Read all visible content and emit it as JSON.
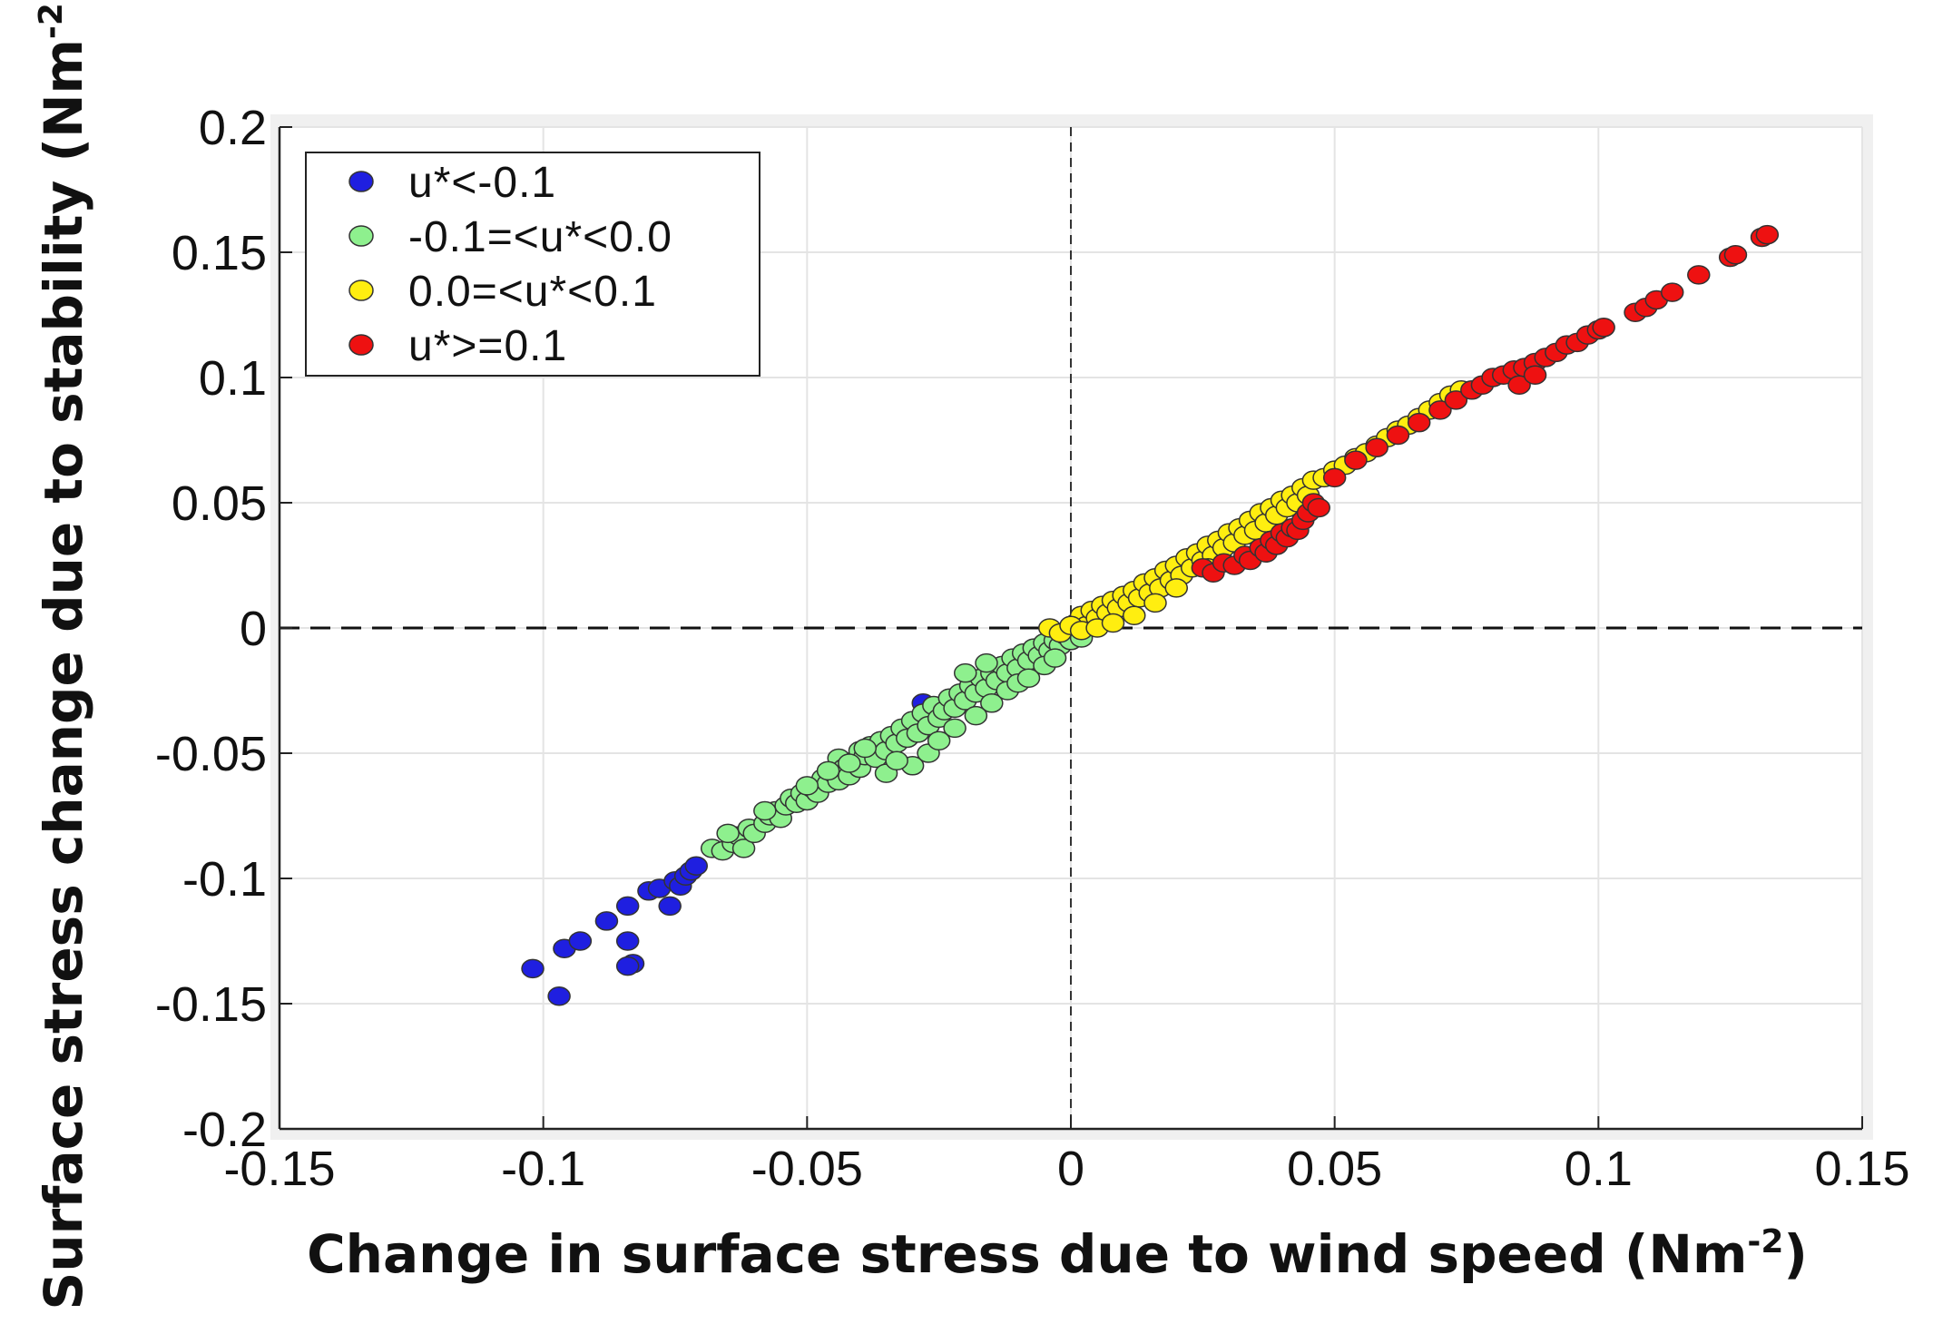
{
  "chart_data": {
    "type": "scatter",
    "title": "",
    "xlabel": "Change in surface stress due to wind speed (Nm",
    "xlabel_sup": "-2",
    "xlabel_end": ")",
    "ylabel": "Surface stress change due to stability (Nm",
    "ylabel_sup": "-2",
    "ylabel_end": ")",
    "xlim": [
      -0.15,
      0.15
    ],
    "ylim": [
      -0.2,
      0.2
    ],
    "x_ticks": [
      -0.15,
      -0.1,
      -0.05,
      0,
      0.05,
      0.1,
      0.15
    ],
    "x_tick_labels": [
      "-0.15",
      "-0.1",
      "-0.05",
      "0",
      "0.05",
      "0.1",
      "0.15"
    ],
    "y_ticks": [
      -0.2,
      -0.15,
      -0.1,
      -0.05,
      0,
      0.05,
      0.1,
      0.15,
      0.2
    ],
    "y_tick_labels": [
      "-0.2",
      "-0.15",
      "-0.1",
      "-0.05",
      "0",
      "0.05",
      "0.1",
      "0.15",
      "0.2"
    ],
    "grid": true,
    "zero_lines": "dashed",
    "legend_position": "top-left",
    "series": [
      {
        "name": "u*<-0.1",
        "color": "#1f1fe0",
        "points": [
          [
            -0.102,
            -0.136
          ],
          [
            -0.097,
            -0.147
          ],
          [
            -0.096,
            -0.128
          ],
          [
            -0.093,
            -0.125
          ],
          [
            -0.088,
            -0.117
          ],
          [
            -0.084,
            -0.111
          ],
          [
            -0.084,
            -0.125
          ],
          [
            -0.083,
            -0.134
          ],
          [
            -0.084,
            -0.135
          ],
          [
            -0.08,
            -0.105
          ],
          [
            -0.078,
            -0.104
          ],
          [
            -0.076,
            -0.111
          ],
          [
            -0.075,
            -0.101
          ],
          [
            -0.074,
            -0.103
          ],
          [
            -0.073,
            -0.099
          ],
          [
            -0.072,
            -0.097
          ],
          [
            -0.071,
            -0.095
          ],
          [
            -0.028,
            -0.03
          ]
        ]
      },
      {
        "name": "-0.1=<u*<0.0",
        "color": "#8ef08e",
        "points": [
          [
            -0.068,
            -0.088
          ],
          [
            -0.066,
            -0.089
          ],
          [
            -0.064,
            -0.086
          ],
          [
            -0.063,
            -0.083
          ],
          [
            -0.062,
            -0.088
          ],
          [
            -0.061,
            -0.08
          ],
          [
            -0.06,
            -0.082
          ],
          [
            -0.058,
            -0.078
          ],
          [
            -0.057,
            -0.075
          ],
          [
            -0.056,
            -0.073
          ],
          [
            -0.055,
            -0.076
          ],
          [
            -0.054,
            -0.071
          ],
          [
            -0.053,
            -0.068
          ],
          [
            -0.052,
            -0.07
          ],
          [
            -0.051,
            -0.066
          ],
          [
            -0.05,
            -0.069
          ],
          [
            -0.049,
            -0.064
          ],
          [
            -0.048,
            -0.066
          ],
          [
            -0.047,
            -0.06
          ],
          [
            -0.046,
            -0.062
          ],
          [
            -0.045,
            -0.058
          ],
          [
            -0.044,
            -0.052
          ],
          [
            -0.044,
            -0.061
          ],
          [
            -0.043,
            -0.056
          ],
          [
            -0.042,
            -0.059
          ],
          [
            -0.041,
            -0.053
          ],
          [
            -0.04,
            -0.049
          ],
          [
            -0.04,
            -0.056
          ],
          [
            -0.039,
            -0.051
          ],
          [
            -0.038,
            -0.047
          ],
          [
            -0.037,
            -0.052
          ],
          [
            -0.036,
            -0.045
          ],
          [
            -0.035,
            -0.049
          ],
          [
            -0.034,
            -0.043
          ],
          [
            -0.033,
            -0.046
          ],
          [
            -0.032,
            -0.04
          ],
          [
            -0.031,
            -0.044
          ],
          [
            -0.03,
            -0.037
          ],
          [
            -0.03,
            -0.055
          ],
          [
            -0.029,
            -0.042
          ],
          [
            -0.028,
            -0.034
          ],
          [
            -0.027,
            -0.039
          ],
          [
            -0.026,
            -0.031
          ],
          [
            -0.025,
            -0.036
          ],
          [
            -0.024,
            -0.033
          ],
          [
            -0.023,
            -0.028
          ],
          [
            -0.022,
            -0.032
          ],
          [
            -0.021,
            -0.026
          ],
          [
            -0.02,
            -0.029
          ],
          [
            -0.019,
            -0.023
          ],
          [
            -0.018,
            -0.026
          ],
          [
            -0.017,
            -0.02
          ],
          [
            -0.016,
            -0.024
          ],
          [
            -0.015,
            -0.018
          ],
          [
            -0.014,
            -0.021
          ],
          [
            -0.013,
            -0.015
          ],
          [
            -0.012,
            -0.018
          ],
          [
            -0.011,
            -0.012
          ],
          [
            -0.01,
            -0.016
          ],
          [
            -0.009,
            -0.01
          ],
          [
            -0.008,
            -0.013
          ],
          [
            -0.007,
            -0.008
          ],
          [
            -0.006,
            -0.011
          ],
          [
            -0.005,
            -0.006
          ],
          [
            -0.004,
            -0.009
          ],
          [
            -0.003,
            -0.005
          ],
          [
            -0.002,
            -0.007
          ],
          [
            -0.001,
            -0.003
          ],
          [
            0.0,
            -0.005
          ],
          [
            0.002,
            -0.004
          ],
          [
            -0.042,
            -0.054
          ],
          [
            -0.039,
            -0.048
          ],
          [
            -0.027,
            -0.05
          ],
          [
            -0.025,
            -0.045
          ],
          [
            -0.022,
            -0.04
          ],
          [
            -0.018,
            -0.035
          ],
          [
            -0.015,
            -0.03
          ],
          [
            -0.012,
            -0.025
          ],
          [
            -0.01,
            -0.022
          ],
          [
            -0.035,
            -0.058
          ],
          [
            -0.033,
            -0.053
          ],
          [
            -0.05,
            -0.063
          ],
          [
            -0.046,
            -0.057
          ],
          [
            -0.058,
            -0.073
          ],
          [
            -0.065,
            -0.082
          ],
          [
            -0.008,
            -0.02
          ],
          [
            -0.005,
            -0.015
          ],
          [
            -0.003,
            -0.012
          ],
          [
            -0.02,
            -0.018
          ],
          [
            -0.016,
            -0.014
          ]
        ]
      },
      {
        "name": "0.0=<u*<0.1",
        "color": "#ffee10",
        "points": [
          [
            0.001,
            0.002
          ],
          [
            0.002,
            0.005
          ],
          [
            0.003,
            0.001
          ],
          [
            0.004,
            0.007
          ],
          [
            0.005,
            0.004
          ],
          [
            0.006,
            0.009
          ],
          [
            0.007,
            0.006
          ],
          [
            0.008,
            0.011
          ],
          [
            0.009,
            0.008
          ],
          [
            0.01,
            0.013
          ],
          [
            0.011,
            0.01
          ],
          [
            0.012,
            0.015
          ],
          [
            0.013,
            0.012
          ],
          [
            0.014,
            0.018
          ],
          [
            0.015,
            0.014
          ],
          [
            0.016,
            0.02
          ],
          [
            0.017,
            0.016
          ],
          [
            0.018,
            0.023
          ],
          [
            0.019,
            0.019
          ],
          [
            0.02,
            0.025
          ],
          [
            0.021,
            0.021
          ],
          [
            0.022,
            0.028
          ],
          [
            0.023,
            0.024
          ],
          [
            0.024,
            0.03
          ],
          [
            0.025,
            0.027
          ],
          [
            0.026,
            0.033
          ],
          [
            0.027,
            0.029
          ],
          [
            0.028,
            0.035
          ],
          [
            0.029,
            0.032
          ],
          [
            0.03,
            0.038
          ],
          [
            0.031,
            0.034
          ],
          [
            0.032,
            0.04
          ],
          [
            0.033,
            0.037
          ],
          [
            0.034,
            0.043
          ],
          [
            0.035,
            0.039
          ],
          [
            0.036,
            0.046
          ],
          [
            0.037,
            0.042
          ],
          [
            0.038,
            0.048
          ],
          [
            0.039,
            0.045
          ],
          [
            0.04,
            0.051
          ],
          [
            0.041,
            0.048
          ],
          [
            0.042,
            0.053
          ],
          [
            0.043,
            0.05
          ],
          [
            0.044,
            0.056
          ],
          [
            0.045,
            0.053
          ],
          [
            0.046,
            0.059
          ],
          [
            0.048,
            0.06
          ],
          [
            0.05,
            0.063
          ],
          [
            0.052,
            0.065
          ],
          [
            0.054,
            0.068
          ],
          [
            0.056,
            0.07
          ],
          [
            0.058,
            0.073
          ],
          [
            0.06,
            0.076
          ],
          [
            0.062,
            0.079
          ],
          [
            0.064,
            0.081
          ],
          [
            0.066,
            0.084
          ],
          [
            0.068,
            0.087
          ],
          [
            0.07,
            0.09
          ],
          [
            0.072,
            0.093
          ],
          [
            0.074,
            0.095
          ],
          [
            -0.004,
            0.0
          ],
          [
            -0.002,
            -0.002
          ],
          [
            0.0,
            0.001
          ],
          [
            0.002,
            -0.001
          ],
          [
            0.005,
            0.0
          ],
          [
            0.008,
            0.002
          ],
          [
            0.012,
            0.005
          ],
          [
            0.016,
            0.01
          ],
          [
            0.02,
            0.016
          ],
          [
            0.026,
            0.024
          ]
        ]
      },
      {
        "name": "u*>=0.1",
        "color": "#ee1111",
        "points": [
          [
            0.025,
            0.024
          ],
          [
            0.027,
            0.022
          ],
          [
            0.029,
            0.026
          ],
          [
            0.031,
            0.025
          ],
          [
            0.033,
            0.029
          ],
          [
            0.034,
            0.027
          ],
          [
            0.036,
            0.032
          ],
          [
            0.037,
            0.03
          ],
          [
            0.038,
            0.035
          ],
          [
            0.039,
            0.033
          ],
          [
            0.04,
            0.038
          ],
          [
            0.041,
            0.036
          ],
          [
            0.042,
            0.04
          ],
          [
            0.043,
            0.039
          ],
          [
            0.044,
            0.043
          ],
          [
            0.045,
            0.046
          ],
          [
            0.046,
            0.05
          ],
          [
            0.047,
            0.048
          ],
          [
            0.05,
            0.06
          ],
          [
            0.054,
            0.067
          ],
          [
            0.058,
            0.072
          ],
          [
            0.062,
            0.077
          ],
          [
            0.066,
            0.082
          ],
          [
            0.07,
            0.087
          ],
          [
            0.073,
            0.091
          ],
          [
            0.076,
            0.095
          ],
          [
            0.078,
            0.097
          ],
          [
            0.08,
            0.1
          ],
          [
            0.082,
            0.101
          ],
          [
            0.084,
            0.103
          ],
          [
            0.086,
            0.104
          ],
          [
            0.088,
            0.106
          ],
          [
            0.09,
            0.108
          ],
          [
            0.092,
            0.11
          ],
          [
            0.094,
            0.113
          ],
          [
            0.096,
            0.114
          ],
          [
            0.098,
            0.117
          ],
          [
            0.1,
            0.119
          ],
          [
            0.101,
            0.12
          ],
          [
            0.107,
            0.126
          ],
          [
            0.109,
            0.128
          ],
          [
            0.111,
            0.131
          ],
          [
            0.114,
            0.134
          ],
          [
            0.119,
            0.141
          ],
          [
            0.125,
            0.148
          ],
          [
            0.126,
            0.149
          ],
          [
            0.131,
            0.156
          ],
          [
            0.132,
            0.157
          ],
          [
            0.085,
            0.097
          ],
          [
            0.088,
            0.101
          ]
        ]
      }
    ]
  }
}
